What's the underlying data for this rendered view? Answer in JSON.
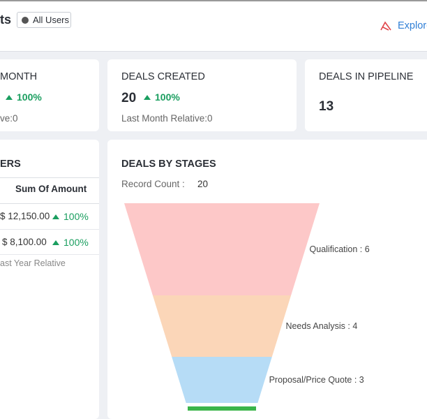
{
  "header": {
    "title_fragment": "ts",
    "filter_button": "All Users",
    "explore_link": "Explore"
  },
  "cards": [
    {
      "title": "MONTH",
      "change": "100%",
      "relative": "ve:0"
    },
    {
      "title": "DEALS CREATED",
      "value": 20,
      "change": "100%",
      "relative": "Last Month Relative:0"
    },
    {
      "title": "DEALS IN PIPELINE",
      "value": 13
    }
  ],
  "users_table": {
    "title": "ERS",
    "column": "Sum Of Amount",
    "rows": [
      {
        "amount": "$ 12,150.00",
        "change": "100%"
      },
      {
        "amount": "$ 8,100.00",
        "change": "100%"
      }
    ],
    "footer": "ast Year Relative"
  },
  "funnel": {
    "title": "DEALS BY STAGES",
    "record_count_label": "Record Count :",
    "record_count": 20,
    "stages": [
      {
        "label": "Qualification : 6",
        "value": 6,
        "color": "#fdc8c8"
      },
      {
        "label": "Needs Analysis : 4",
        "value": 4,
        "color": "#fbd6b8"
      },
      {
        "label": "Proposal/Price Quote : 3",
        "value": 3,
        "color": "#b6dcf6"
      }
    ]
  }
}
